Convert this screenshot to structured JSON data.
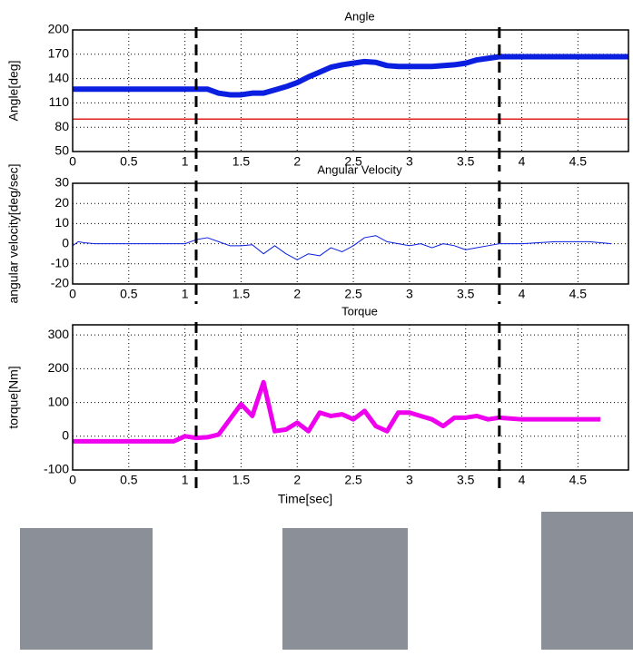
{
  "chart_data": [
    {
      "type": "line",
      "title": "Angle",
      "y_label": "Angle[deg]",
      "x": [
        0,
        1.0,
        1.2,
        1.3,
        1.4,
        1.5,
        1.6,
        1.7,
        1.8,
        1.9,
        2.0,
        2.1,
        2.2,
        2.3,
        2.4,
        2.5,
        2.6,
        2.7,
        2.8,
        2.9,
        3.0,
        3.2,
        3.4,
        3.5,
        3.6,
        3.7,
        3.8,
        4.95
      ],
      "series": [
        {
          "color": "#0a1fe0",
          "values": [
            127,
            127,
            127,
            122,
            120,
            120,
            122,
            122,
            126,
            130,
            135,
            142,
            148,
            154,
            157,
            159,
            161,
            160,
            156,
            155,
            155,
            155,
            157,
            159,
            163,
            165,
            167,
            167
          ]
        }
      ],
      "hlines": [
        {
          "value": 90,
          "color": "#e02020"
        }
      ],
      "markers": [
        1.1,
        3.8
      ],
      "xlim": [
        0,
        4.95
      ],
      "xticks": [
        0,
        0.5,
        1,
        1.5,
        2,
        2.5,
        3,
        3.5,
        4,
        4.5
      ],
      "ylim": [
        50,
        200
      ],
      "yticks": [
        50,
        80,
        110,
        140,
        170,
        200
      ],
      "grid": true,
      "line_width": 6
    },
    {
      "type": "line",
      "title": "Angular Velocity",
      "y_label": "angular velocity[deg/sec]",
      "x": [
        0,
        0.05,
        0.1,
        0.2,
        1.0,
        1.1,
        1.2,
        1.3,
        1.4,
        1.5,
        1.6,
        1.7,
        1.8,
        1.9,
        2.0,
        2.1,
        2.2,
        2.3,
        2.4,
        2.5,
        2.6,
        2.7,
        2.8,
        2.9,
        3.0,
        3.1,
        3.2,
        3.3,
        3.4,
        3.5,
        3.6,
        3.7,
        3.8,
        4.0,
        4.3,
        4.6,
        4.8
      ],
      "series": [
        {
          "color": "#0a1fe0",
          "values": [
            -1,
            1,
            0.5,
            0,
            0,
            2,
            3,
            1,
            -1,
            -1,
            -0.5,
            -5,
            -1,
            -5,
            -8,
            -5,
            -6,
            -2,
            -4,
            -1,
            3,
            4,
            1,
            0,
            -1,
            0,
            -2,
            0,
            -1,
            -3,
            -2,
            -1,
            0,
            0,
            1,
            1,
            0
          ]
        }
      ],
      "markers": [
        1.1,
        3.8
      ],
      "xlim": [
        0,
        4.95
      ],
      "xticks": [
        0,
        0.5,
        1,
        1.5,
        2,
        2.5,
        3,
        3.5,
        4,
        4.5
      ],
      "ylim": [
        -20,
        30
      ],
      "yticks": [
        -20,
        -10,
        0,
        10,
        20,
        30
      ],
      "grid": true,
      "line_width": 1
    },
    {
      "type": "line",
      "title": "Torque",
      "y_label": "torque[Nm]",
      "x_label": "Time[sec]",
      "x": [
        0,
        0.9,
        1.0,
        1.1,
        1.2,
        1.3,
        1.4,
        1.5,
        1.6,
        1.7,
        1.8,
        1.9,
        2.0,
        2.1,
        2.2,
        2.3,
        2.4,
        2.5,
        2.6,
        2.7,
        2.8,
        2.9,
        3.0,
        3.1,
        3.2,
        3.3,
        3.4,
        3.5,
        3.6,
        3.7,
        3.8,
        4.0,
        4.7
      ],
      "series": [
        {
          "color": "#ee00ee",
          "values": [
            -15,
            -15,
            0,
            -5,
            -3,
            5,
            50,
            95,
            60,
            160,
            15,
            20,
            40,
            15,
            70,
            60,
            65,
            50,
            75,
            30,
            15,
            70,
            70,
            60,
            50,
            30,
            55,
            55,
            60,
            50,
            55,
            50,
            50
          ]
        }
      ],
      "markers": [
        1.1,
        3.8
      ],
      "xlim": [
        0,
        4.95
      ],
      "xticks": [
        0,
        0.5,
        1,
        1.5,
        2,
        2.5,
        3,
        3.5,
        4,
        4.5
      ],
      "ylim": [
        -100,
        330
      ],
      "yticks": [
        -100,
        0,
        100,
        200,
        300
      ],
      "grid": true,
      "line_width": 5
    }
  ]
}
